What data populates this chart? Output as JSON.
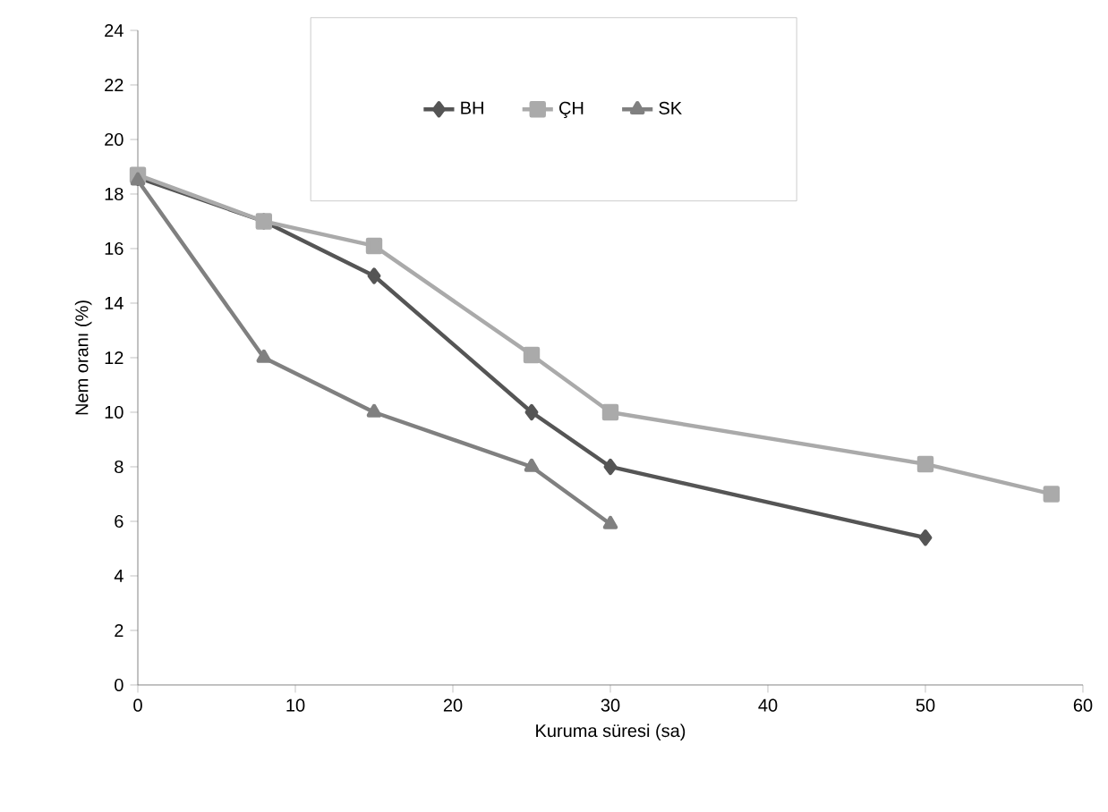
{
  "chart_data": {
    "type": "line",
    "xlabel": "Kuruma süresi (sa)",
    "ylabel": "Nem oranı (%)",
    "xlim": [
      0,
      60
    ],
    "xticks": [
      0,
      10,
      20,
      30,
      40,
      50,
      60
    ],
    "ylim": [
      0,
      24
    ],
    "yticks": [
      0,
      2,
      4,
      6,
      8,
      10,
      12,
      14,
      16,
      18,
      20,
      22,
      24
    ],
    "grid": false,
    "legend": "top",
    "series": [
      {
        "name": "BH",
        "color": "#555555",
        "marker": "diamond",
        "x": [
          0,
          8,
          15,
          25,
          30,
          50
        ],
        "values": [
          18.6,
          17,
          15,
          10,
          8,
          5.4
        ]
      },
      {
        "name": "ÇH",
        "color": "#aaaaaa",
        "marker": "square",
        "x": [
          0,
          8,
          15,
          25,
          30,
          50,
          58
        ],
        "values": [
          18.7,
          17,
          16.1,
          12.1,
          10,
          8.1,
          7
        ]
      },
      {
        "name": "SK",
        "color": "#808080",
        "marker": "triangle",
        "x": [
          0,
          8,
          15,
          25,
          30
        ],
        "values": [
          18.5,
          12,
          10,
          8,
          5.9
        ]
      }
    ]
  }
}
